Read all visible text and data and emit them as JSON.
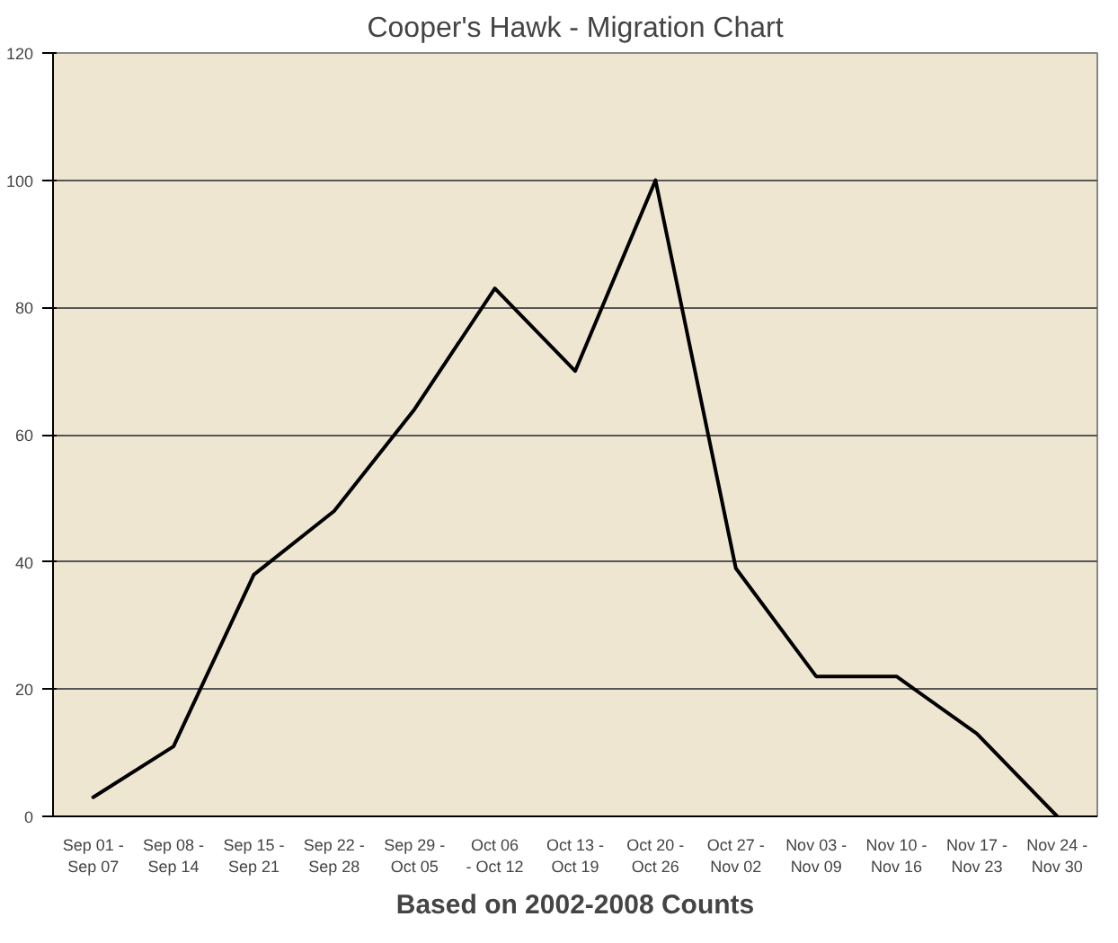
{
  "chart_data": {
    "type": "line",
    "title": "Cooper's Hawk - Migration Chart",
    "xlabel": "Based on 2002-2008 Counts",
    "categories": [
      "Sep 01 -\nSep 07",
      "Sep 08 -\nSep 14",
      "Sep 15 -\nSep 21",
      "Sep 22 -\nSep 28",
      "Sep 29 -\nOct 05",
      "Oct 06\n- Oct 12",
      "Oct 13 -\nOct 19",
      "Oct 20 -\nOct 26",
      "Oct 27 -\nNov 02",
      "Nov 03 -\nNov 09",
      "Nov 10 -\nNov 16",
      "Nov 17 -\nNov 23",
      "Nov 24 -\nNov 30"
    ],
    "series": [
      {
        "color": "#000000",
        "values": [
          3,
          11,
          38,
          48,
          64,
          83,
          70,
          100,
          39,
          22,
          22,
          13,
          0
        ]
      }
    ],
    "ylim": [
      0,
      120
    ],
    "yticks": [
      0,
      20,
      40,
      60,
      80,
      100,
      120
    ],
    "grid": "y",
    "marker": "none",
    "line_style": "solid"
  }
}
